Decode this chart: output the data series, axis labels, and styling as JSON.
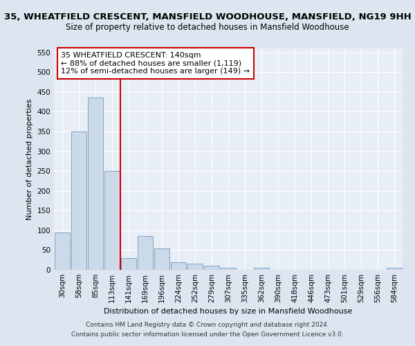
{
  "title": "35, WHEATFIELD CRESCENT, MANSFIELD WOODHOUSE, MANSFIELD, NG19 9HH",
  "subtitle": "Size of property relative to detached houses in Mansfield Woodhouse",
  "xlabel": "Distribution of detached houses by size in Mansfield Woodhouse",
  "ylabel": "Number of detached properties",
  "footer_line1": "Contains HM Land Registry data © Crown copyright and database right 2024.",
  "footer_line2": "Contains public sector information licensed under the Open Government Licence v3.0.",
  "annotation_line1": "35 WHEATFIELD CRESCENT: 140sqm",
  "annotation_line2": "← 88% of detached houses are smaller (1,119)",
  "annotation_line3": "12% of semi-detached houses are larger (149) →",
  "categories": [
    "30sqm",
    "58sqm",
    "85sqm",
    "113sqm",
    "141sqm",
    "169sqm",
    "196sqm",
    "224sqm",
    "252sqm",
    "279sqm",
    "307sqm",
    "335sqm",
    "362sqm",
    "390sqm",
    "418sqm",
    "446sqm",
    "473sqm",
    "501sqm",
    "529sqm",
    "556sqm",
    "584sqm"
  ],
  "bar_values": [
    95,
    350,
    435,
    250,
    30,
    85,
    55,
    20,
    15,
    10,
    5,
    0,
    5,
    0,
    0,
    0,
    0,
    0,
    0,
    0,
    5
  ],
  "bar_color": "#ccd9e8",
  "bar_edge_color": "#6a9bbf",
  "marker_color": "#cc0000",
  "marker_at_index": 4,
  "ylim": [
    0,
    560
  ],
  "yticks": [
    0,
    50,
    100,
    150,
    200,
    250,
    300,
    350,
    400,
    450,
    500,
    550
  ],
  "fig_bg_color": "#dde6f0",
  "plot_bg_color": "#e8eef5",
  "title_fontsize": 9.5,
  "subtitle_fontsize": 8.5,
  "tick_fontsize": 7.5,
  "ylabel_fontsize": 8,
  "xlabel_fontsize": 8,
  "annotation_fontsize": 8,
  "footer_fontsize": 6.5
}
